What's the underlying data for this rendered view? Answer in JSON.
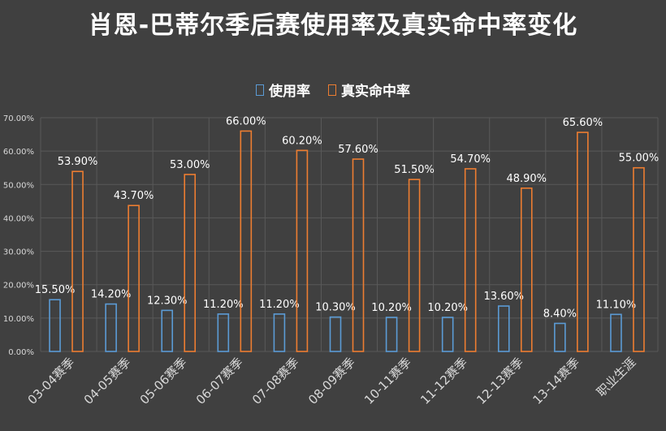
{
  "colors": {
    "background": "#404040",
    "grid": "#595959",
    "usage": "#5b9bd5",
    "ts": "#ed7d31",
    "label": "#ffffff",
    "tick": "#d9d9d9"
  },
  "chart_data": {
    "type": "bar",
    "title": "肖恩-巴蒂尔季后赛使用率及真实命中率变化",
    "categories": [
      "03-04赛季",
      "04-05赛季",
      "05-06赛季",
      "06-07赛季",
      "07-08赛季",
      "08-09赛季",
      "10-11赛季",
      "11-12赛季",
      "12-13赛季",
      "13-14赛季",
      "职业生涯"
    ],
    "series": [
      {
        "name": "使用率",
        "values": [
          15.5,
          14.2,
          12.3,
          11.2,
          11.2,
          10.3,
          10.2,
          10.2,
          13.6,
          8.4,
          11.1
        ],
        "labels": [
          "15.50%",
          "14.20%",
          "12.30%",
          "11.20%",
          "11.20%",
          "10.30%",
          "10.20%",
          "10.20%",
          "13.60%",
          "8.40%",
          "11.10%"
        ]
      },
      {
        "name": "真实命中率",
        "values": [
          53.9,
          43.7,
          53.0,
          66.0,
          60.2,
          57.6,
          51.5,
          54.7,
          48.9,
          65.6,
          55.0
        ],
        "labels": [
          "53.90%",
          "43.70%",
          "53.00%",
          "66.00%",
          "60.20%",
          "57.60%",
          "51.50%",
          "54.70%",
          "48.90%",
          "65.60%",
          "55.00%"
        ]
      }
    ],
    "ylim": [
      0,
      70
    ],
    "yticks": [
      "0.00%",
      "10.00%",
      "20.00%",
      "30.00%",
      "40.00%",
      "50.00%",
      "60.00%",
      "70.00%"
    ],
    "grid": true,
    "legend": "top-center"
  }
}
